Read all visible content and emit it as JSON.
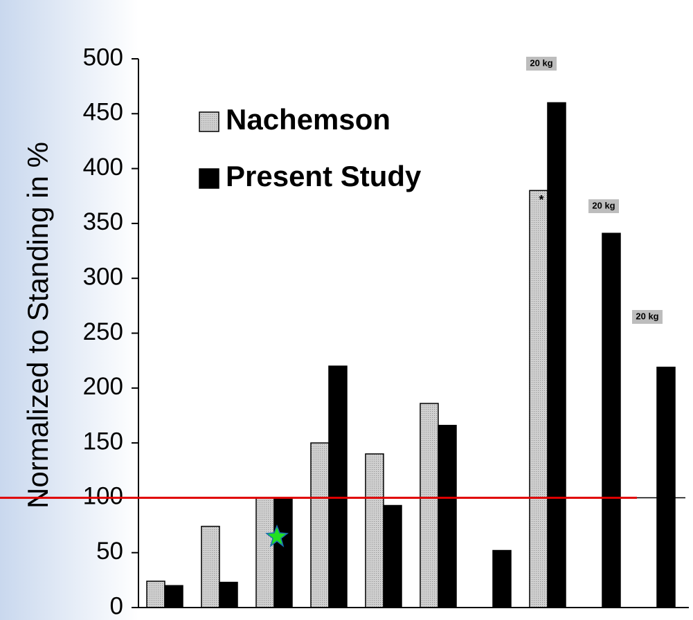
{
  "chart_data": {
    "type": "bar",
    "y_label": "Normalized to Standing in %",
    "categories": [
      null,
      null,
      null,
      null,
      null,
      null,
      null,
      null,
      null,
      null
    ],
    "series": [
      {
        "name": "Nachemson",
        "color": "#c4c4c4",
        "values": [
          24,
          74,
          100,
          150,
          140,
          186,
          null,
          380,
          null,
          null
        ]
      },
      {
        "name": "Present Study",
        "color": "#000000",
        "values": [
          20,
          23,
          100,
          220,
          93,
          166,
          52,
          460,
          341,
          219
        ]
      }
    ],
    "ylim": [
      0,
      500
    ],
    "yticks": [
      0,
      50,
      100,
      150,
      200,
      250,
      300,
      350,
      400,
      450,
      500
    ],
    "reference_line": {
      "value": 100,
      "color": "#e00000"
    },
    "annotations": [
      "*",
      "20 kg",
      "20 kg",
      "20 kg"
    ]
  }
}
